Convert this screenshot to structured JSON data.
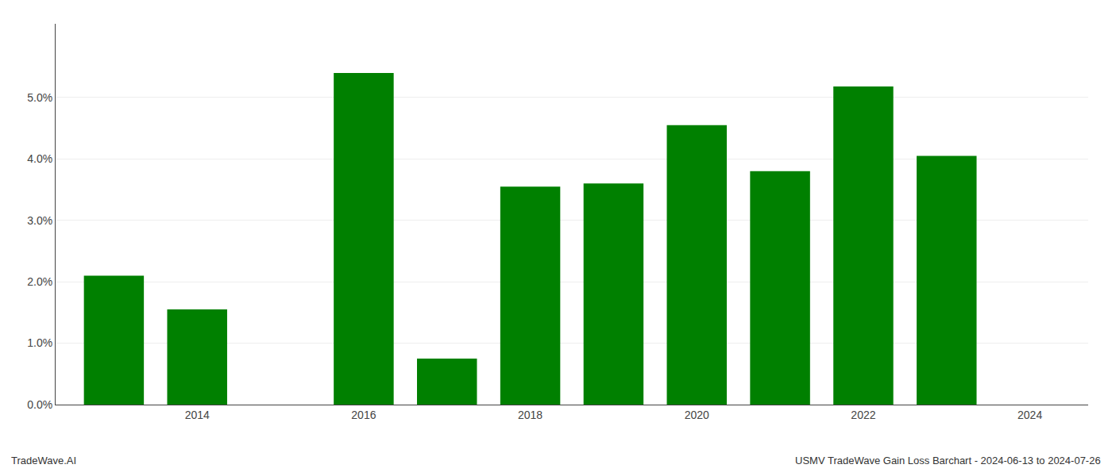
{
  "chart_data": {
    "type": "bar",
    "x": [
      2013,
      2014,
      2016,
      2017,
      2018,
      2019,
      2020,
      2021,
      2022,
      2023
    ],
    "values": [
      0.021,
      0.0155,
      0.054,
      0.0075,
      0.0355,
      0.036,
      0.0455,
      0.038,
      0.0518,
      0.0405
    ],
    "color": "#008000",
    "xlim": [
      2012.3,
      2024.7
    ],
    "xticks": [
      2014,
      2016,
      2018,
      2020,
      2022,
      2024
    ],
    "ylim": [
      0,
      0.062
    ],
    "yticks": [
      {
        "value": 0.0,
        "label": "0.0%"
      },
      {
        "value": 0.01,
        "label": "1.0%"
      },
      {
        "value": 0.02,
        "label": "2.0%"
      },
      {
        "value": 0.03,
        "label": "3.0%"
      },
      {
        "value": 0.04,
        "label": "4.0%"
      },
      {
        "value": 0.05,
        "label": "5.0%"
      }
    ],
    "grid": true,
    "annotations": [
      "TradeWave.AI",
      "USMV TradeWave Gain Loss Barchart - 2024-06-13 to 2024-07-26"
    ]
  }
}
